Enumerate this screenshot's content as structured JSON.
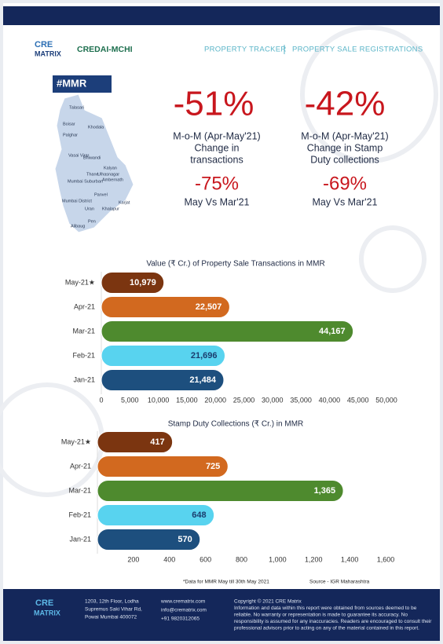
{
  "header": {
    "logo": [
      "CRE",
      "MATRIX"
    ],
    "partner": "CREDAI-MCHI",
    "nav": [
      "PROPERTY TRACKER",
      "PROPERTY SALE REGISTRATIONS"
    ]
  },
  "map": {
    "tag": "#MMR",
    "places": [
      "Talasari",
      "Boisar",
      "Khodala",
      "Palghar",
      "Vasai Virar",
      "Bhiwandi",
      "Kalyan",
      "Thane",
      "Ulhasnagar",
      "Ambernath",
      "Mumbai Suburban",
      "Mumbai District",
      "Panvel",
      "Uran",
      "Karjat",
      "Khalapur",
      "Pen",
      "Alibaug"
    ]
  },
  "stats": [
    {
      "value": "-51%",
      "label": [
        "M-o-M (Apr-May'21)",
        "Change in",
        "transactions"
      ],
      "sub_value": "-75%",
      "sub_label": "May Vs Mar'21"
    },
    {
      "value": "-42%",
      "label": [
        "M-o-M (Apr-May'21)",
        "Change in Stamp",
        "Duty collections"
      ],
      "sub_value": "-69%",
      "sub_label": "May Vs Mar'21"
    }
  ],
  "chart_data": [
    {
      "type": "bar",
      "orientation": "horizontal",
      "title": "Value (₹ Cr.) of Property Sale Transactions in MMR",
      "categories": [
        "May-21★",
        "Apr-21",
        "Mar-21",
        "Feb-21",
        "Jan-21"
      ],
      "values": [
        10979,
        22507,
        44167,
        21696,
        21484
      ],
      "value_labels": [
        "10,979",
        "22,507",
        "44,167",
        "21,696",
        "21,484"
      ],
      "colors": [
        "#7b3510",
        "#d2691f",
        "#4e8a2e",
        "#58d3ef",
        "#1d4f7e"
      ],
      "xlim": [
        0,
        50000
      ],
      "xticks": [
        0,
        {
          "value": 5000,
          "label": "5,000"
        },
        {
          "value": 10000,
          "label": "10,000"
        },
        {
          "value": 15000,
          "label": "15,000"
        },
        {
          "value": 20000,
          "label": "20,000"
        },
        {
          "value": 25000,
          "label": "25,000"
        },
        {
          "value": 30000,
          "label": "30,000"
        },
        {
          "value": 35000,
          "label": "35,000"
        },
        {
          "value": 40000,
          "label": "40,000"
        },
        {
          "value": 45000,
          "label": "45,000"
        },
        {
          "value": 50000,
          "label": "50,000"
        }
      ]
    },
    {
      "type": "bar",
      "orientation": "horizontal",
      "title": "Stamp Duty Collections (₹ Cr.) in MMR",
      "categories": [
        "May-21★",
        "Apr-21",
        "Mar-21",
        "Feb-21",
        "Jan-21"
      ],
      "values": [
        417,
        725,
        1365,
        648,
        570
      ],
      "value_labels": [
        "417",
        "725",
        "1,365",
        "648",
        "570"
      ],
      "colors": [
        "#7b3510",
        "#d2691f",
        "#4e8a2e",
        "#58d3ef",
        "#1d4f7e"
      ],
      "xlim": [
        0,
        1600
      ],
      "xticks": [
        200,
        400,
        600,
        800,
        {
          "value": 1000,
          "label": "1,000"
        },
        {
          "value": 1200,
          "label": "1,200"
        },
        {
          "value": 1400,
          "label": "1,400"
        },
        {
          "value": 1600,
          "label": "1,600"
        }
      ]
    }
  ],
  "notes": {
    "data_note": "*Data for MMR May till 30th May 2021",
    "source": "Source - IGR Maharashtra"
  },
  "footer": {
    "logo": [
      "CRE",
      "MATRIX"
    ],
    "address": [
      "1203, 12th Floor, Lodha",
      "Supremus Saki Vihar Rd,",
      "Powai Mumbai 400072"
    ],
    "contact": [
      "www.crematrix.com",
      "info@crematrix.com",
      "+91 9820312065"
    ],
    "copyright": [
      "Copyright © 2021 CRE Matrix",
      "Information and data within this report were obtained from sources deemed to be",
      "reliable. No warranty or representation is made to guarantee its accuracy. No",
      "responsibility is assumed for any inaccuracies. Readers are encouraged to consult their",
      "professional advisors prior to acting on any of the material contained in this report."
    ]
  }
}
